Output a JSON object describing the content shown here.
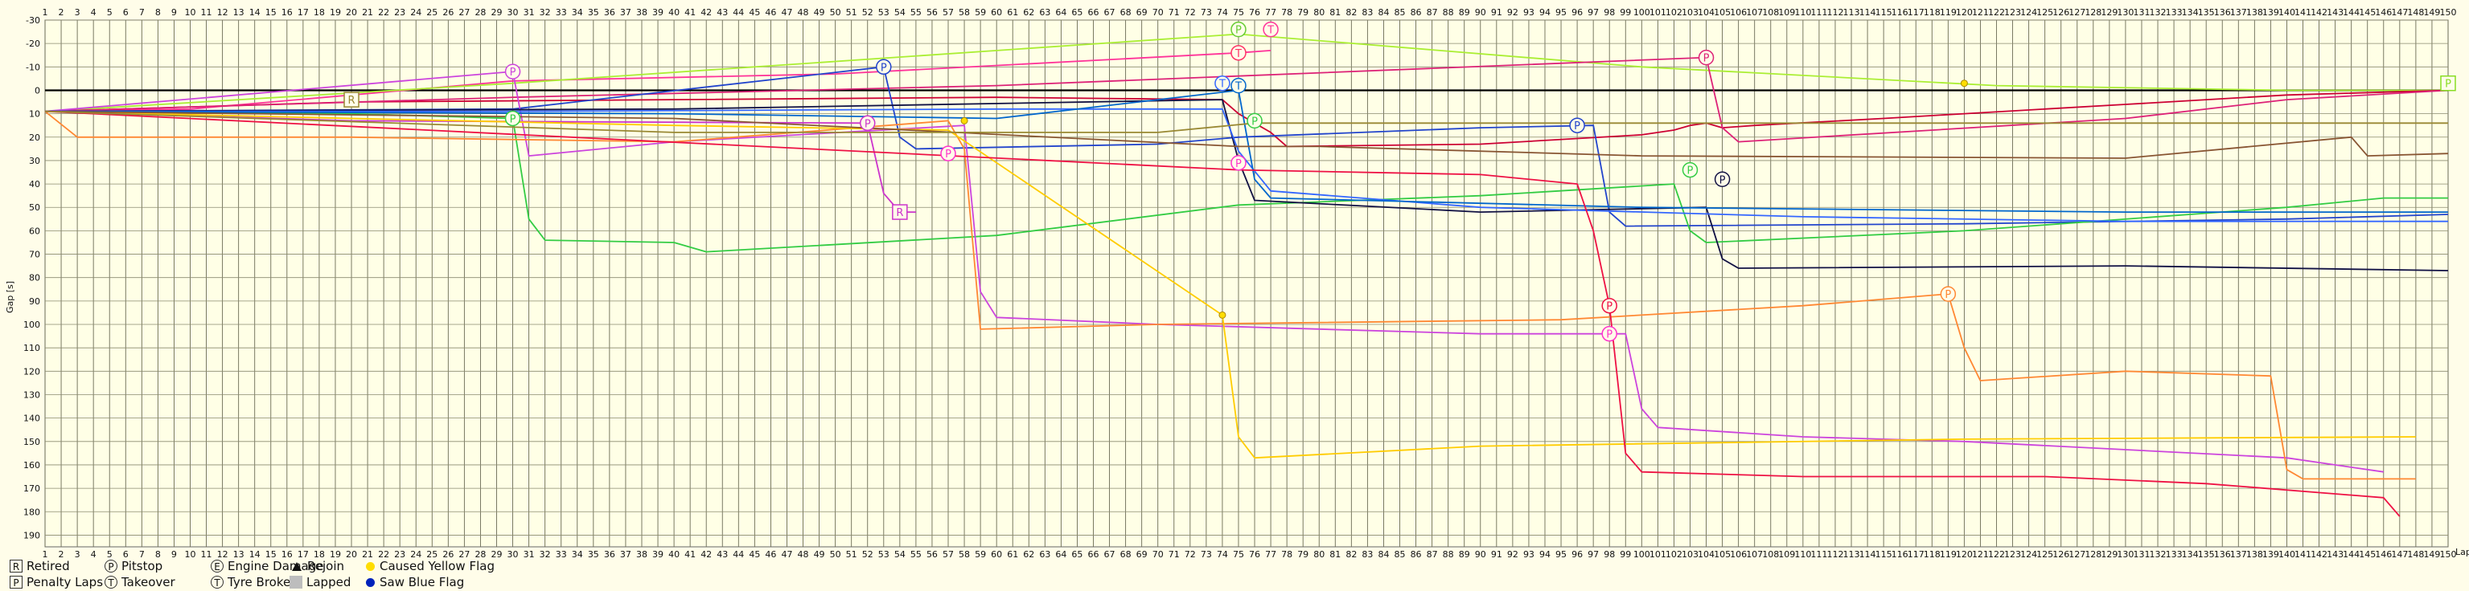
{
  "chart_data": {
    "type": "line",
    "title": "",
    "xlabel": "Lap",
    "ylabel": "Gap [s]",
    "xlim": [
      1,
      150
    ],
    "ylim": [
      -30,
      195
    ],
    "y_inverted": true,
    "yticks": [
      -30,
      -20,
      -10,
      0,
      10,
      20,
      30,
      40,
      50,
      60,
      70,
      80,
      90,
      100,
      110,
      120,
      130,
      140,
      150,
      160,
      170,
      180,
      190
    ],
    "x_tick_step": 1,
    "grid": true,
    "background_color": "#ffffe6",
    "series": [
      {
        "color": "#ff3399",
        "values": [
          [
            1,
            9
          ],
          [
            10,
            8
          ],
          [
            30,
            -4
          ],
          [
            50,
            -7
          ],
          [
            75,
            -16
          ],
          [
            77,
            -17
          ]
        ],
        "marker": {
          "lap": 77,
          "gap": -26,
          "symbol": "T"
        }
      },
      {
        "color": "#aaee33",
        "values": [
          [
            1,
            9
          ],
          [
            30,
            -3
          ],
          [
            75,
            -24
          ],
          [
            100,
            -10
          ],
          [
            122,
            -2
          ],
          [
            140,
            0
          ],
          [
            150,
            0
          ]
        ]
      },
      {
        "color": "#cc0033",
        "values": [
          [
            1,
            9
          ],
          [
            20,
            5
          ],
          [
            60,
            3
          ],
          [
            74,
            4
          ],
          [
            75,
            10
          ],
          [
            76,
            14
          ],
          [
            77,
            18
          ],
          [
            78,
            24
          ],
          [
            90,
            23
          ],
          [
            100,
            19
          ],
          [
            102,
            17
          ],
          [
            103,
            15
          ],
          [
            104,
            14
          ],
          [
            105,
            16
          ],
          [
            107,
            15
          ],
          [
            115,
            12
          ],
          [
            120,
            10
          ],
          [
            130,
            6
          ],
          [
            140,
            2
          ],
          [
            150,
            0
          ]
        ]
      },
      {
        "color": "#dd2277",
        "values": [
          [
            1,
            9
          ],
          [
            30,
            3
          ],
          [
            60,
            -2
          ],
          [
            104,
            -14
          ],
          [
            105,
            16
          ],
          [
            106,
            22
          ],
          [
            130,
            12
          ],
          [
            140,
            4
          ],
          [
            150,
            0
          ]
        ],
        "marker": {
          "lap": 104,
          "gap": -14,
          "symbol": "P"
        }
      },
      {
        "color": "#2244cc",
        "values": [
          [
            1,
            9
          ],
          [
            30,
            8
          ],
          [
            53,
            -10
          ],
          [
            54,
            20
          ],
          [
            55,
            25
          ],
          [
            70,
            23
          ],
          [
            75,
            20
          ],
          [
            90,
            16
          ],
          [
            97,
            15
          ],
          [
            98,
            52
          ],
          [
            99,
            58
          ],
          [
            120,
            57
          ],
          [
            140,
            55
          ],
          [
            150,
            53
          ]
        ],
        "marker": {
          "lap": 53,
          "gap": -10,
          "symbol": "P"
        }
      },
      {
        "color": "#33cc44",
        "values": [
          [
            1,
            9
          ],
          [
            20,
            10
          ],
          [
            30,
            12
          ],
          [
            31,
            55
          ],
          [
            32,
            64
          ],
          [
            40,
            65
          ],
          [
            42,
            69
          ],
          [
            60,
            62
          ],
          [
            75,
            49
          ],
          [
            90,
            45
          ],
          [
            102,
            40
          ],
          [
            103,
            60
          ],
          [
            104,
            65
          ],
          [
            120,
            60
          ],
          [
            140,
            50
          ],
          [
            146,
            46
          ],
          [
            150,
            46
          ]
        ],
        "marker": {
          "lap": 30,
          "gap": 12,
          "symbol": "P"
        }
      },
      {
        "color": "#cc33cc",
        "values": [
          [
            1,
            9
          ],
          [
            20,
            13
          ],
          [
            52,
            14
          ],
          [
            53,
            44
          ],
          [
            54,
            52
          ],
          [
            55,
            52
          ]
        ],
        "marker": {
          "lap": 52,
          "gap": 14,
          "symbol": "P"
        }
      },
      {
        "color": "#cc44dd",
        "values": [
          [
            1,
            9
          ],
          [
            30,
            -8
          ],
          [
            31,
            28
          ],
          [
            40,
            22
          ],
          [
            58,
            15
          ],
          [
            59,
            86
          ],
          [
            60,
            97
          ],
          [
            70,
            100
          ],
          [
            90,
            104
          ],
          [
            99,
            104
          ],
          [
            100,
            136
          ],
          [
            101,
            144
          ],
          [
            110,
            148
          ],
          [
            120,
            150
          ],
          [
            140,
            157
          ],
          [
            146,
            163
          ]
        ],
        "marker": {
          "lap": 30,
          "gap": -8,
          "symbol": "P"
        }
      },
      {
        "color": "#ff8833",
        "values": [
          [
            1,
            9
          ],
          [
            3,
            20
          ],
          [
            20,
            20
          ],
          [
            40,
            22
          ],
          [
            57,
            13
          ],
          [
            58,
            25
          ],
          [
            59,
            102
          ],
          [
            70,
            100
          ],
          [
            95,
            98
          ],
          [
            110,
            92
          ],
          [
            119,
            87
          ],
          [
            120,
            110
          ],
          [
            121,
            124
          ],
          [
            130,
            120
          ],
          [
            139,
            122
          ],
          [
            140,
            162
          ],
          [
            141,
            166
          ],
          [
            148,
            166
          ]
        ]
      },
      {
        "color": "#ffcc00",
        "values": [
          [
            1,
            9
          ],
          [
            20,
            12
          ],
          [
            40,
            15
          ],
          [
            57,
            17
          ],
          [
            74,
            96
          ],
          [
            75,
            148
          ],
          [
            76,
            157
          ],
          [
            90,
            152
          ],
          [
            120,
            149
          ],
          [
            148,
            148
          ]
        ]
      },
      {
        "color": "#111144",
        "values": [
          [
            1,
            9
          ],
          [
            40,
            8
          ],
          [
            74,
            4
          ],
          [
            75,
            30
          ],
          [
            76,
            47
          ],
          [
            90,
            52
          ],
          [
            104,
            50
          ],
          [
            105,
            72
          ],
          [
            106,
            76
          ],
          [
            130,
            75
          ],
          [
            150,
            77
          ]
        ],
        "marker": {
          "lap": 105,
          "gap": 38,
          "symbol": "P"
        }
      },
      {
        "color": "#3366ff",
        "values": [
          [
            1,
            9
          ],
          [
            30,
            9
          ],
          [
            60,
            8
          ],
          [
            74,
            8
          ],
          [
            75,
            26
          ],
          [
            77,
            43
          ],
          [
            90,
            50
          ],
          [
            110,
            54
          ],
          [
            130,
            56
          ],
          [
            150,
            56
          ]
        ],
        "marker": {
          "lap": 74,
          "gap": -3,
          "symbol": "T"
        }
      },
      {
        "color": "#0066cc",
        "values": [
          [
            1,
            9
          ],
          [
            40,
            10
          ],
          [
            60,
            12
          ],
          [
            75,
            0
          ],
          [
            76,
            38
          ],
          [
            77,
            46
          ],
          [
            100,
            50
          ],
          [
            130,
            52
          ],
          [
            150,
            52
          ]
        ],
        "marker": {
          "lap": 75,
          "gap": -2,
          "symbol": "T"
        }
      },
      {
        "color": "#885533",
        "values": [
          [
            1,
            9
          ],
          [
            40,
            12
          ],
          [
            75,
            24
          ],
          [
            80,
            24
          ],
          [
            100,
            28
          ],
          [
            130,
            29
          ],
          [
            144,
            20
          ],
          [
            145,
            28
          ],
          [
            150,
            27
          ]
        ]
      },
      {
        "color": "#ee1144",
        "values": [
          [
            1,
            9
          ],
          [
            75,
            34
          ],
          [
            90,
            36
          ],
          [
            96,
            40
          ],
          [
            97,
            60
          ],
          [
            98,
            92
          ],
          [
            99,
            155
          ],
          [
            100,
            163
          ],
          [
            110,
            165
          ],
          [
            125,
            165
          ],
          [
            135,
            168
          ],
          [
            146,
            174
          ],
          [
            147,
            182
          ]
        ],
        "marker": {
          "lap": 98,
          "gap": 92,
          "symbol": "P"
        }
      },
      {
        "color": "#998833",
        "values": [
          [
            1,
            9
          ],
          [
            40,
            18
          ],
          [
            70,
            18
          ],
          [
            76,
            14
          ],
          [
            90,
            14
          ],
          [
            120,
            14
          ],
          [
            150,
            14
          ]
        ],
        "marker": {
          "lap": 20,
          "gap": 4,
          "symbol": "R"
        }
      }
    ],
    "markers": [
      {
        "lap": 75,
        "gap": -26,
        "symbol": "P",
        "kind": "circle",
        "color": "#66cc33"
      },
      {
        "lap": 75,
        "gap": -16,
        "symbol": "T",
        "kind": "circle",
        "color": "#ff3366"
      },
      {
        "lap": 57,
        "gap": 27,
        "symbol": "P",
        "kind": "circle",
        "color": "#ff33cc"
      },
      {
        "lap": 98,
        "gap": 104,
        "symbol": "P",
        "kind": "circle",
        "color": "#ff33cc"
      },
      {
        "lap": 75,
        "gap": 31,
        "symbol": "P",
        "kind": "circle",
        "color": "#ff33cc"
      },
      {
        "lap": 76,
        "gap": 13,
        "symbol": "P",
        "kind": "circle",
        "color": "#33cc44"
      },
      {
        "lap": 96,
        "gap": 15,
        "symbol": "P",
        "kind": "circle",
        "color": "#2244cc"
      },
      {
        "lap": 103,
        "gap": 34,
        "symbol": "P",
        "kind": "circle",
        "color": "#33cc44"
      },
      {
        "lap": 119,
        "gap": 87,
        "symbol": "P",
        "kind": "circle",
        "color": "#ff8833"
      },
      {
        "lap": 54,
        "gap": 52,
        "symbol": "R",
        "kind": "box",
        "color": "#cc33cc"
      },
      {
        "lap": 150,
        "gap": -3,
        "symbol": "P",
        "kind": "box",
        "color": "#88dd22"
      }
    ],
    "yellow_flag_dots": [
      [
        58,
        13
      ],
      [
        74,
        96
      ],
      [
        120,
        -3
      ]
    ]
  },
  "legend": {
    "items": [
      {
        "symbol": "R",
        "shape": "box",
        "label": "Retired"
      },
      {
        "symbol": "P",
        "shape": "circle",
        "label": "Pitstop"
      },
      {
        "symbol": "E",
        "shape": "circle",
        "label": "Engine Damage"
      },
      {
        "symbol": "",
        "shape": "triangle",
        "label": "Rejoin"
      },
      {
        "symbol": "",
        "shape": "dot",
        "color": "#ffdd00",
        "label": "Caused Yellow Flag"
      },
      {
        "symbol": "P",
        "shape": "box",
        "label": "Penalty Laps"
      },
      {
        "symbol": "T",
        "shape": "circle",
        "label": "Takeover"
      },
      {
        "symbol": "T",
        "shape": "circle",
        "label": "Tyre Broken"
      },
      {
        "symbol": "",
        "shape": "gray",
        "label": "Lapped"
      },
      {
        "symbol": "",
        "shape": "dot",
        "color": "#0022bb",
        "label": "Saw Blue Flag"
      }
    ]
  }
}
